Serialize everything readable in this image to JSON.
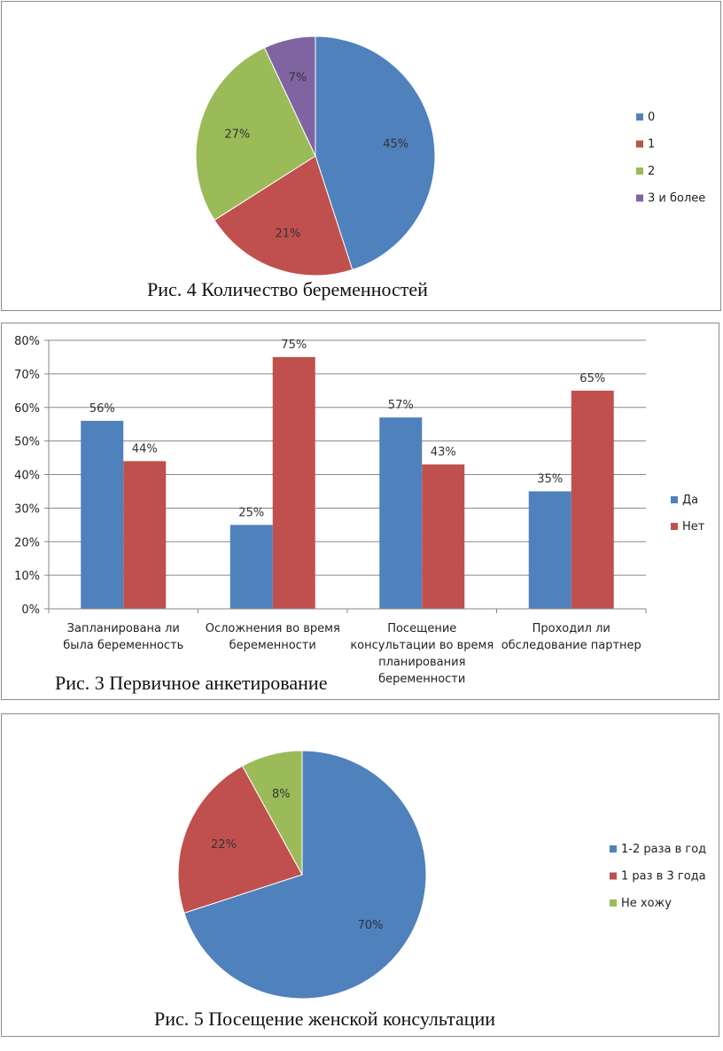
{
  "chart_data": [
    {
      "type": "pie",
      "title": "Рис. 4 Количество беременностей",
      "categories": [
        "0",
        "1",
        "2",
        "3 и более"
      ],
      "values": [
        45,
        21,
        27,
        7
      ],
      "labels": [
        "45%",
        "21%",
        "27%",
        "7%"
      ],
      "colors": [
        "#4f81bd",
        "#c0504d",
        "#9bbb59",
        "#8064a2"
      ],
      "legend": "right"
    },
    {
      "type": "bar",
      "title": "Рис. 3 Первичное анкетирование",
      "categories": [
        [
          "Запланирована ли",
          "была беременность"
        ],
        [
          "Осложнения во время",
          "беременности"
        ],
        [
          "Посещение",
          "консультации во время",
          "планирования",
          "беременности"
        ],
        [
          "Проходил ли",
          "обследование партнер"
        ]
      ],
      "series": [
        {
          "name": "Да",
          "values": [
            56,
            25,
            57,
            35
          ],
          "labels": [
            "56%",
            "25%",
            "57%",
            "35%"
          ],
          "color": "#4f81bd"
        },
        {
          "name": "Нет",
          "values": [
            44,
            75,
            43,
            65
          ],
          "labels": [
            "44%",
            "75%",
            "43%",
            "65%"
          ],
          "color": "#c0504d"
        }
      ],
      "ylim": [
        0,
        80
      ],
      "yticks": [
        "0%",
        "10%",
        "20%",
        "30%",
        "40%",
        "50%",
        "60%",
        "70%",
        "80%"
      ],
      "grid": true,
      "legend": "right"
    },
    {
      "type": "pie",
      "title": "Рис. 5 Посещение женской консультации",
      "categories": [
        "1-2 раза в год",
        "1 раз в 3 года",
        "Не хожу"
      ],
      "values": [
        70,
        22,
        8
      ],
      "labels": [
        "70%",
        "22%",
        "8%"
      ],
      "colors": [
        "#4f81bd",
        "#c0504d",
        "#9bbb59"
      ],
      "legend": "right"
    }
  ]
}
